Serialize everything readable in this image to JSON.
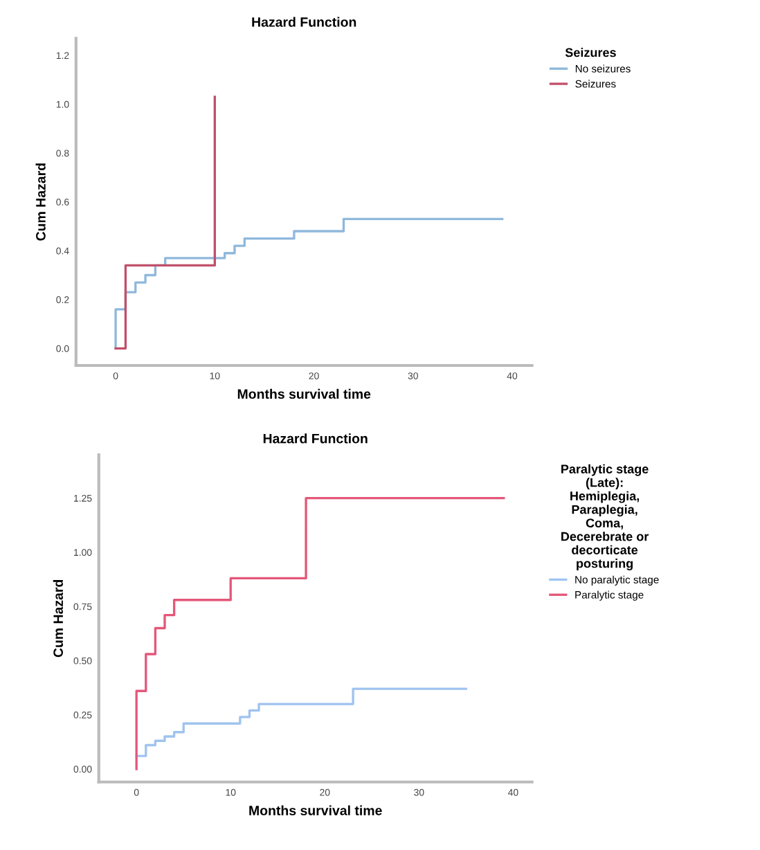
{
  "chart_data": [
    {
      "type": "step",
      "title": "Hazard Function",
      "xlabel": "Months survival time",
      "ylabel": "Cum Hazard",
      "legend_title": "Seizures",
      "legend": "top right",
      "grid": false,
      "xlim": [
        -4,
        42
      ],
      "xticks": [
        0,
        10,
        20,
        30,
        40
      ],
      "ylim": [
        -0.07,
        1.27
      ],
      "yticks": [
        {
          "value": 0,
          "label": "0.0"
        },
        {
          "value": 0.2,
          "label": "0.2"
        },
        {
          "value": 0.4,
          "label": "0.4"
        },
        {
          "value": 0.6,
          "label": "0.6"
        },
        {
          "value": 0.8,
          "label": "0.8"
        },
        {
          "value": 1.0,
          "label": "1.0"
        },
        {
          "value": 1.2,
          "label": "1.2"
        }
      ],
      "series": [
        {
          "name": "No seizures",
          "color": "#8fb8dc",
          "x": [
            0,
            0,
            1,
            2,
            3,
            4,
            5,
            11,
            12,
            13,
            18,
            23,
            39
          ],
          "values": [
            0,
            0.16,
            0.23,
            0.27,
            0.3,
            0.34,
            0.37,
            0.39,
            0.42,
            0.45,
            0.48,
            0.53,
            0.53
          ]
        },
        {
          "name": "Seizures",
          "color": "#c0506a",
          "x": [
            0,
            1,
            10
          ],
          "values": [
            0,
            0.34,
            1.03
          ]
        }
      ]
    },
    {
      "type": "step",
      "title": "Hazard Function",
      "xlabel": "Months survival time",
      "ylabel": "Cum Hazard",
      "legend_title": "Paralytic stage (Late): Hemiplegia, Paraplegia, Coma, Decerebrate or decorticate posturing",
      "legend": "top right",
      "grid": false,
      "xlim": [
        -4,
        42
      ],
      "xticks": [
        0,
        10,
        20,
        30,
        40
      ],
      "ylim": [
        -0.06,
        1.45
      ],
      "yticks": [
        {
          "value": 0,
          "label": "0.00"
        },
        {
          "value": 0.25,
          "label": "0.25"
        },
        {
          "value": 0.5,
          "label": "0.50"
        },
        {
          "value": 0.75,
          "label": "0.75"
        },
        {
          "value": 1.0,
          "label": "1.00"
        },
        {
          "value": 1.25,
          "label": "1.25"
        }
      ],
      "series": [
        {
          "name": "No paralytic stage",
          "color": "#9fc3f0",
          "x": [
            0,
            1,
            2,
            3,
            4,
            5,
            11,
            12,
            13,
            23,
            35
          ],
          "values": [
            0.06,
            0.11,
            0.13,
            0.15,
            0.17,
            0.21,
            0.24,
            0.27,
            0.3,
            0.37,
            0.37
          ]
        },
        {
          "name": "Paralytic stage",
          "color": "#e4577a",
          "x": [
            0,
            0,
            1,
            2,
            3,
            4,
            10,
            18,
            39
          ],
          "values": [
            0,
            0.36,
            0.53,
            0.65,
            0.71,
            0.78,
            0.88,
            1.25,
            1.25
          ]
        }
      ]
    }
  ]
}
